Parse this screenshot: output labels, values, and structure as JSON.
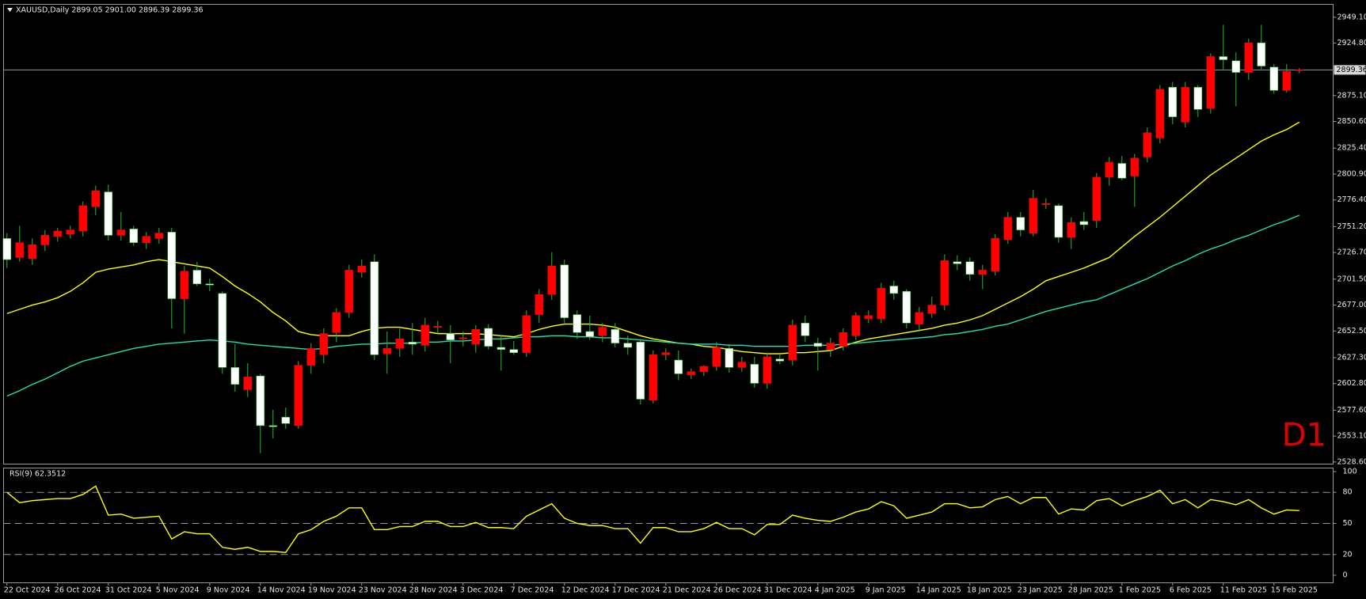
{
  "chart_data": [
    {
      "type": "candlestick",
      "title": "XAUUSD,Daily  2899.05 2901.00 2896.39 2899.36",
      "watermark": "D1",
      "up_color": "#ff0000",
      "down_color": "#ffffff",
      "wick_color": "#20c020",
      "categories": [
        "22 Oct 2024",
        null,
        null,
        null,
        "26 Oct 2024",
        null,
        null,
        null,
        "31 Oct 2024",
        null,
        null,
        null,
        "5 Nov 2024",
        null,
        null,
        null,
        "9 Nov 2024",
        null,
        null,
        null,
        "14 Nov 2024",
        null,
        null,
        null,
        "19 Nov 2024",
        null,
        null,
        null,
        "23 Nov 2024",
        null,
        null,
        null,
        "28 Nov 2024",
        null,
        null,
        null,
        "3 Dec 2024",
        null,
        null,
        null,
        "7 Dec 2024",
        null,
        null,
        null,
        "12 Dec 2024",
        null,
        null,
        null,
        "17 Dec 2024",
        null,
        null,
        null,
        "21 Dec 2024",
        null,
        null,
        null,
        "26 Dec 2024",
        null,
        null,
        null,
        "31 Dec 2024",
        null,
        null,
        null,
        "4 Jan 2025",
        null,
        null,
        null,
        "9 Jan 2025",
        null,
        null,
        null,
        "14 Jan 2025",
        null,
        null,
        null,
        "18 Jan 2025",
        null,
        null,
        null,
        "23 Jan 2025",
        null,
        null,
        null,
        "28 Jan 2025",
        null,
        null,
        null,
        "1 Feb 2025",
        null,
        null,
        null,
        "6 Feb 2025",
        null,
        null,
        null,
        "11 Feb 2025",
        null,
        null,
        null,
        "15 Feb 2025",
        null,
        null
      ],
      "ohlc": [
        [
          2740,
          2745,
          2712,
          2720
        ],
        [
          2722,
          2752,
          2718,
          2736
        ],
        [
          2721,
          2740,
          2715,
          2734
        ],
        [
          2734,
          2748,
          2728,
          2743
        ],
        [
          2742,
          2750,
          2737,
          2747
        ],
        [
          2744,
          2752,
          2740,
          2748
        ],
        [
          2747,
          2775,
          2742,
          2771
        ],
        [
          2770,
          2790,
          2762,
          2785
        ],
        [
          2784,
          2791,
          2738,
          2743
        ],
        [
          2743,
          2765,
          2738,
          2748
        ],
        [
          2749,
          2752,
          2733,
          2736
        ],
        [
          2736,
          2746,
          2730,
          2742
        ],
        [
          2740,
          2750,
          2735,
          2745
        ],
        [
          2746,
          2750,
          2655,
          2683
        ],
        [
          2683,
          2714,
          2650,
          2709
        ],
        [
          2710,
          2718,
          2695,
          2697
        ],
        [
          2697,
          2702,
          2690,
          2696
        ],
        [
          2688,
          2690,
          2612,
          2618
        ],
        [
          2618,
          2640,
          2595,
          2602
        ],
        [
          2597,
          2622,
          2590,
          2609
        ],
        [
          2610,
          2612,
          2537,
          2563
        ],
        [
          2563,
          2578,
          2551,
          2562
        ],
        [
          2571,
          2580,
          2560,
          2565
        ],
        [
          2563,
          2624,
          2560,
          2620
        ],
        [
          2620,
          2641,
          2612,
          2636
        ],
        [
          2630,
          2655,
          2622,
          2650
        ],
        [
          2651,
          2674,
          2642,
          2670
        ],
        [
          2670,
          2715,
          2665,
          2710
        ],
        [
          2708,
          2720,
          2703,
          2714
        ],
        [
          2718,
          2725,
          2625,
          2630
        ],
        [
          2631,
          2652,
          2612,
          2636
        ],
        [
          2636,
          2655,
          2628,
          2645
        ],
        [
          2642,
          2660,
          2630,
          2640
        ],
        [
          2639,
          2665,
          2633,
          2658
        ],
        [
          2656,
          2662,
          2650,
          2657
        ],
        [
          2650,
          2658,
          2622,
          2644
        ],
        [
          2645,
          2652,
          2638,
          2646
        ],
        [
          2640,
          2658,
          2632,
          2654
        ],
        [
          2655,
          2659,
          2635,
          2638
        ],
        [
          2637,
          2648,
          2615,
          2635
        ],
        [
          2635,
          2643,
          2630,
          2632
        ],
        [
          2632,
          2672,
          2628,
          2667
        ],
        [
          2668,
          2692,
          2660,
          2687
        ],
        [
          2687,
          2727,
          2682,
          2714
        ],
        [
          2715,
          2720,
          2660,
          2665
        ],
        [
          2668,
          2672,
          2645,
          2651
        ],
        [
          2652,
          2667,
          2644,
          2647
        ],
        [
          2648,
          2660,
          2642,
          2656
        ],
        [
          2654,
          2660,
          2637,
          2641
        ],
        [
          2641,
          2648,
          2630,
          2637
        ],
        [
          2642,
          2645,
          2583,
          2588
        ],
        [
          2587,
          2634,
          2584,
          2630
        ],
        [
          2630,
          2636,
          2625,
          2632
        ],
        [
          2625,
          2634,
          2606,
          2612
        ],
        [
          2611,
          2617,
          2607,
          2614
        ],
        [
          2614,
          2620,
          2610,
          2619
        ],
        [
          2619,
          2642,
          2615,
          2637
        ],
        [
          2636,
          2640,
          2613,
          2618
        ],
        [
          2618,
          2628,
          2614,
          2623
        ],
        [
          2621,
          2628,
          2599,
          2603
        ],
        [
          2603,
          2632,
          2598,
          2628
        ],
        [
          2626,
          2630,
          2621,
          2624
        ],
        [
          2625,
          2663,
          2620,
          2658
        ],
        [
          2660,
          2667,
          2642,
          2648
        ],
        [
          2641,
          2646,
          2615,
          2638
        ],
        [
          2635,
          2646,
          2628,
          2641
        ],
        [
          2638,
          2655,
          2634,
          2651
        ],
        [
          2648,
          2670,
          2644,
          2667
        ],
        [
          2664,
          2672,
          2660,
          2667
        ],
        [
          2664,
          2698,
          2660,
          2693
        ],
        [
          2695,
          2700,
          2682,
          2688
        ],
        [
          2690,
          2692,
          2655,
          2660
        ],
        [
          2659,
          2675,
          2652,
          2670
        ],
        [
          2669,
          2685,
          2665,
          2677
        ],
        [
          2677,
          2725,
          2672,
          2719
        ],
        [
          2718,
          2724,
          2710,
          2716
        ],
        [
          2718,
          2722,
          2700,
          2706
        ],
        [
          2706,
          2715,
          2692,
          2710
        ],
        [
          2709,
          2744,
          2705,
          2740
        ],
        [
          2739,
          2765,
          2735,
          2760
        ],
        [
          2760,
          2765,
          2742,
          2748
        ],
        [
          2745,
          2786,
          2742,
          2778
        ],
        [
          2772,
          2778,
          2768,
          2773
        ],
        [
          2771,
          2773,
          2736,
          2741
        ],
        [
          2741,
          2760,
          2730,
          2755
        ],
        [
          2756,
          2765,
          2748,
          2753
        ],
        [
          2757,
          2802,
          2750,
          2798
        ],
        [
          2798,
          2817,
          2790,
          2812
        ],
        [
          2811,
          2818,
          2795,
          2797
        ],
        [
          2799,
          2820,
          2770,
          2816
        ],
        [
          2817,
          2845,
          2812,
          2840
        ],
        [
          2835,
          2885,
          2830,
          2881
        ],
        [
          2883,
          2888,
          2848,
          2855
        ],
        [
          2850,
          2888,
          2845,
          2883
        ],
        [
          2883,
          2885,
          2855,
          2862
        ],
        [
          2863,
          2915,
          2858,
          2912
        ],
        [
          2912,
          2942,
          2900,
          2909
        ],
        [
          2908,
          2916,
          2865,
          2897
        ],
        [
          2897,
          2929,
          2890,
          2925
        ],
        [
          2925,
          2942,
          2900,
          2903
        ],
        [
          2902,
          2905,
          2877,
          2880
        ],
        [
          2880,
          2905,
          2878,
          2898
        ],
        [
          2899.05,
          2901,
          2896.39,
          2899.36
        ]
      ],
      "series": [
        {
          "color": "#ffff00",
          "values": [
            2669,
            2673,
            2677,
            2680,
            2684,
            2690,
            2698,
            2708,
            2711,
            2713,
            2715,
            2718,
            2720,
            2718,
            2716,
            2714,
            2712,
            2704,
            2695,
            2688,
            2680,
            2670,
            2662,
            2652,
            2649,
            2648,
            2648,
            2648,
            2652,
            2655,
            2656,
            2656,
            2654,
            2652,
            2650,
            2650,
            2650,
            2650,
            2649,
            2648,
            2647,
            2650,
            2654,
            2657,
            2659,
            2659,
            2659,
            2658,
            2656,
            2652,
            2648,
            2645,
            2643,
            2641,
            2640,
            2638,
            2637,
            2635,
            2633,
            2632,
            2631,
            2631,
            2632,
            2632,
            2633,
            2634,
            2638,
            2642,
            2645,
            2647,
            2649,
            2651,
            2653,
            2655,
            2658,
            2660,
            2663,
            2667,
            2673,
            2679,
            2685,
            2692,
            2700,
            2704,
            2708,
            2712,
            2717,
            2722,
            2732,
            2742,
            2751,
            2760,
            2770,
            2780,
            2790,
            2800,
            2808,
            2816,
            2824,
            2832,
            2838,
            2843,
            2850
          ]
        },
        {
          "color": "#20e0b0",
          "values": [
            2591,
            2596,
            2602,
            2607,
            2613,
            2619,
            2624,
            2627,
            2630,
            2633,
            2636,
            2638,
            2640,
            2641,
            2642,
            2643,
            2644,
            2643,
            2642,
            2640,
            2639,
            2638,
            2637,
            2636,
            2635,
            2636,
            2638,
            2639,
            2640,
            2640,
            2641,
            2641,
            2641,
            2642,
            2642,
            2643,
            2643,
            2644,
            2645,
            2645,
            2646,
            2647,
            2647,
            2648,
            2648,
            2647,
            2647,
            2646,
            2646,
            2645,
            2644,
            2643,
            2642,
            2641,
            2640,
            2640,
            2640,
            2639,
            2639,
            2638,
            2638,
            2638,
            2638,
            2639,
            2639,
            2639,
            2640,
            2641,
            2642,
            2643,
            2644,
            2645,
            2646,
            2647,
            2649,
            2650,
            2652,
            2654,
            2657,
            2659,
            2663,
            2667,
            2671,
            2674,
            2677,
            2680,
            2682,
            2687,
            2692,
            2697,
            2702,
            2708,
            2714,
            2719,
            2725,
            2730,
            2734,
            2739,
            2743,
            2748,
            2753,
            2757,
            2762
          ]
        }
      ],
      "ylim": [
        2527,
        2961
      ],
      "yticks": [
        {
          "value": 2528.6,
          "label": "2528.60"
        },
        {
          "value": 2553.1,
          "label": "2553.10"
        },
        {
          "value": 2577.6,
          "label": "2577.60"
        },
        {
          "value": 2602.8,
          "label": "2602.80"
        },
        {
          "value": 2627.3,
          "label": "2627.30"
        },
        {
          "value": 2652.5,
          "label": "2652.50"
        },
        {
          "value": 2677,
          "label": "2677.00"
        },
        {
          "value": 2701.5,
          "label": "2701.50"
        },
        {
          "value": 2726.7,
          "label": "2726.70"
        },
        {
          "value": 2751.2,
          "label": "2751.20"
        },
        {
          "value": 2776.4,
          "label": "2776.40"
        },
        {
          "value": 2800.9,
          "label": "2800.90"
        },
        {
          "value": 2825.4,
          "label": "2825.40"
        },
        {
          "value": 2850.6,
          "label": "2850.60"
        },
        {
          "value": 2875.1,
          "label": "2875.10"
        },
        {
          "value": 2924.8,
          "label": "2924.80"
        },
        {
          "value": 2949.1,
          "label": "2949.10"
        }
      ]
    },
    {
      "type": "line",
      "title": "RSI(9) 62.3512",
      "series": [
        {
          "color": "#ffff00",
          "values": [
            80,
            70,
            72,
            73,
            74,
            74,
            78,
            86,
            58,
            59,
            55,
            56,
            57,
            35,
            42,
            40,
            40,
            27,
            25,
            27,
            23,
            23,
            22,
            40,
            44,
            52,
            57,
            65,
            65,
            44,
            44,
            47,
            47,
            52,
            52,
            47,
            47,
            51,
            46,
            46,
            45,
            57,
            63,
            69,
            55,
            50,
            48,
            48,
            45,
            45,
            31,
            46,
            46,
            42,
            42,
            45,
            51,
            45,
            45,
            39,
            49,
            49,
            58,
            55,
            53,
            52,
            56,
            61,
            64,
            71,
            67,
            55,
            58,
            61,
            69,
            69,
            65,
            66,
            73,
            76,
            69,
            75,
            75,
            59,
            64,
            63,
            72,
            74,
            67,
            72,
            76,
            82,
            69,
            73,
            65,
            73,
            71,
            68,
            73,
            65,
            59,
            63,
            62.35
          ]
        }
      ],
      "ylim": [
        0,
        100
      ],
      "yticks": [
        0,
        20,
        50,
        80,
        100
      ]
    }
  ]
}
